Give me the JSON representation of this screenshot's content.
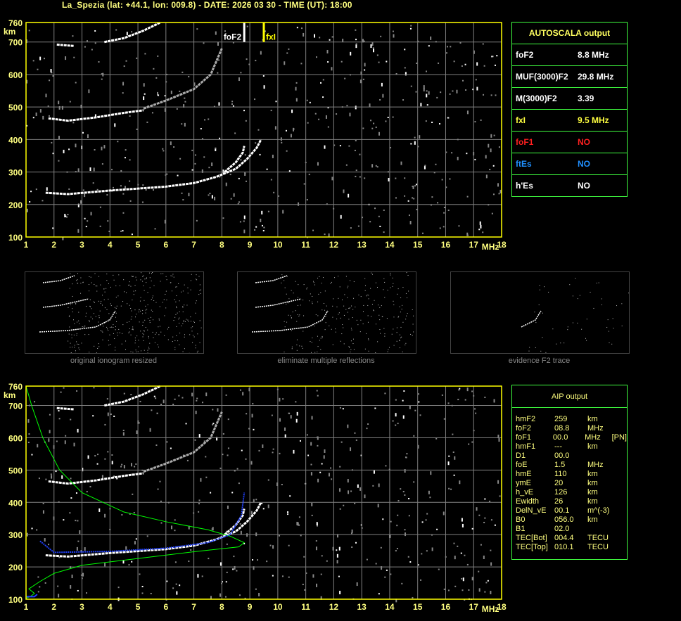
{
  "header": {
    "title": "La_Spezia (lat: +44.1, lon: 009.8) - DATE: 2026 03 30 - TIME (UT): 18:00"
  },
  "axes": {
    "x_ticks": [
      "1",
      "2",
      "3",
      "4",
      "5",
      "6",
      "7",
      "8",
      "9",
      "10",
      "11",
      "12",
      "13",
      "14",
      "15",
      "16",
      "17",
      "18"
    ],
    "x_unit": "MHz",
    "y_ticks": [
      "760",
      "700",
      "600",
      "500",
      "400",
      "300",
      "200",
      "100"
    ],
    "y_unit": "km",
    "x_range": [
      1,
      18
    ],
    "y_range": [
      100,
      760
    ]
  },
  "markers": {
    "foF2_label": "foF2",
    "foF2_value": 8.8,
    "fxI_label": "fxI",
    "fxI_value": 9.5
  },
  "autoscala": {
    "title": "AUTOSCALA output",
    "rows": [
      {
        "key": "foF2",
        "value": "8.8 MHz",
        "color": "#ffffff"
      },
      {
        "key": "MUF(3000)F2",
        "value": "29.8 MHz",
        "color": "#ffffff"
      },
      {
        "key": "M(3000)F2",
        "value": "3.39",
        "color": "#ffffff"
      },
      {
        "key": "fxI",
        "value": "9.5 MHz",
        "color": "#ffff40"
      },
      {
        "key": "foF1",
        "value": "NO",
        "color": "#ff2020"
      },
      {
        "key": "ftEs",
        "value": "NO",
        "color": "#2090ff"
      },
      {
        "key": "h'Es",
        "value": "NO",
        "color": "#ffffff"
      }
    ]
  },
  "thumbnails": [
    {
      "caption": "original ionogram resized"
    },
    {
      "caption": "eliminate multiple reflections"
    },
    {
      "caption": "evidence F2 trace"
    }
  ],
  "aip": {
    "title": "AIP output",
    "rows": [
      [
        "hmF2",
        "259",
        "km",
        ""
      ],
      [
        "foF2",
        "08.8",
        "MHz",
        ""
      ],
      [
        "foF1",
        "00.0",
        "MHz",
        "[PN]"
      ],
      [
        "hmF1",
        "---",
        "km",
        ""
      ],
      [
        "D1",
        "00.0",
        "",
        ""
      ],
      [
        "foE",
        "1.5",
        "MHz",
        ""
      ],
      [
        "hmE",
        "110",
        "km",
        ""
      ],
      [
        "ymE",
        "20",
        "km",
        ""
      ],
      [
        "h_vE",
        "126",
        "km",
        ""
      ],
      [
        "Ewidth",
        "26",
        "km",
        ""
      ],
      [
        "DelN_vE",
        "00.1",
        "m^(-3)",
        ""
      ],
      [
        "B0",
        "056.0",
        "km",
        ""
      ],
      [
        "B1",
        "02.0",
        "",
        ""
      ],
      [
        "TEC[Bot]",
        "004.4",
        "TECU",
        ""
      ],
      [
        "TEC[Top]",
        "010.1",
        "TECU",
        ""
      ]
    ]
  },
  "colors": {
    "frame": "#ffff00",
    "grid": "#808080",
    "table_border": "#40ff40",
    "profile": "#00ff00",
    "trace_fit": "#2040ff"
  }
}
